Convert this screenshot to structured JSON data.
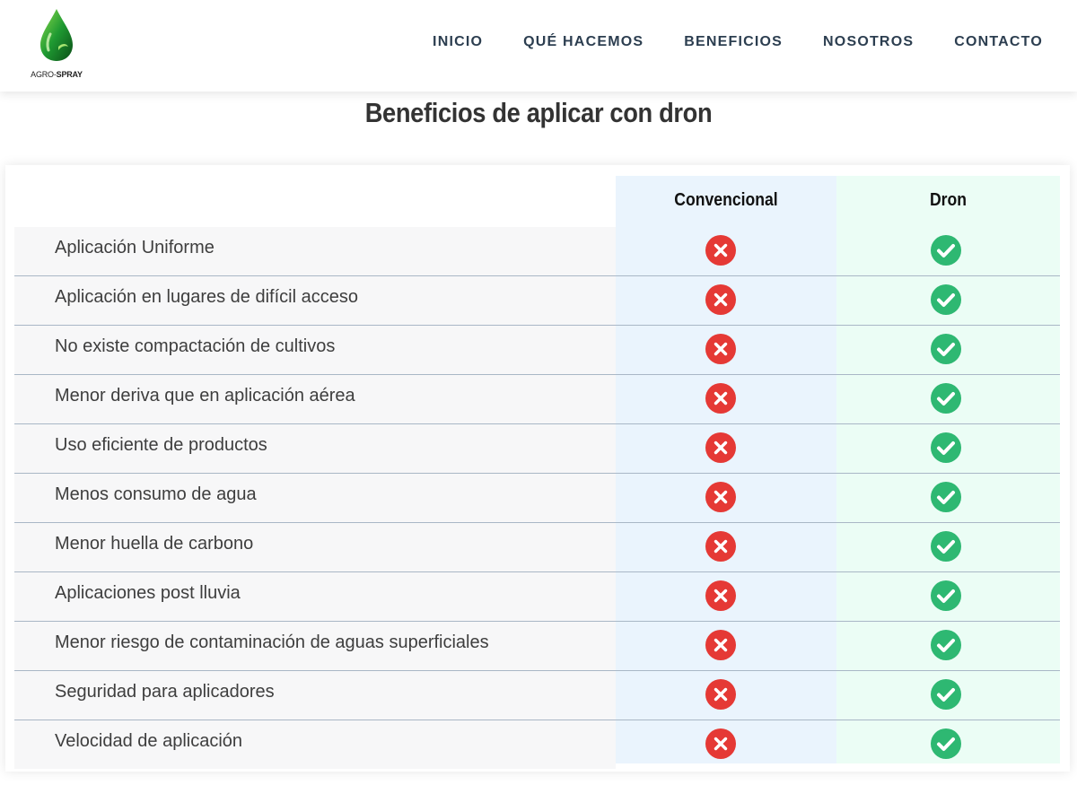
{
  "header": {
    "logo": {
      "text_main": "AGRO-",
      "text_strong": "SPRAY"
    },
    "nav": [
      "INICIO",
      "QUÉ HACEMOS",
      "BENEFICIOS",
      "NOSOTROS",
      "CONTACTO"
    ]
  },
  "section": {
    "title": "Beneficios de aplicar con dron"
  },
  "table": {
    "columns": [
      "Convencional",
      "Dron"
    ],
    "rows": [
      {
        "label": "Aplicación Uniforme",
        "convencional": "no",
        "dron": "yes"
      },
      {
        "label": "Aplicación en lugares de difícil acceso",
        "convencional": "no",
        "dron": "yes"
      },
      {
        "label": "No existe compactación de cultivos",
        "convencional": "no",
        "dron": "yes"
      },
      {
        "label": "Menor deriva que en aplicación aérea",
        "convencional": "no",
        "dron": "yes"
      },
      {
        "label": "Uso eficiente de productos",
        "convencional": "no",
        "dron": "yes"
      },
      {
        "label": "Menos consumo de agua",
        "convencional": "no",
        "dron": "yes"
      },
      {
        "label": "Menor huella de carbono",
        "convencional": "no",
        "dron": "yes"
      },
      {
        "label": "Aplicaciones post lluvia",
        "convencional": "no",
        "dron": "yes"
      },
      {
        "label": "Menor riesgo de contaminación de aguas superficiales",
        "convencional": "no",
        "dron": "yes"
      },
      {
        "label": "Seguridad para aplicadores",
        "convencional": "no",
        "dron": "yes"
      },
      {
        "label": "Velocidad de aplicación",
        "convencional": "no",
        "dron": "yes"
      }
    ],
    "icons": {
      "no": "x-circle-icon",
      "yes": "check-circle-icon"
    }
  },
  "colors": {
    "nav_text": "#2c3e50",
    "no_icon": "#e53935",
    "yes_icon": "#2eb872",
    "col_convencional_bg": "#eaf4fd",
    "col_dron_bg": "#ebfdf5"
  }
}
